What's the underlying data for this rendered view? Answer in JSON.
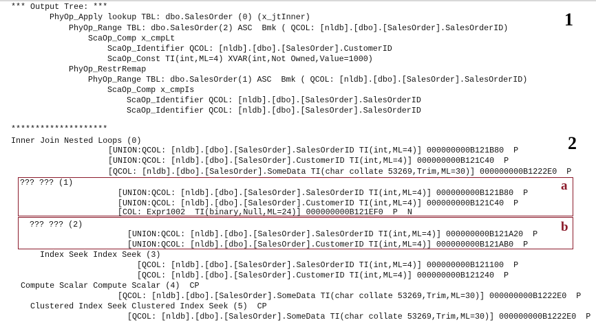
{
  "tree": {
    "lines": [
      "*** Output Tree: ***",
      "PhyOp_Apply lookup TBL: dbo.SalesOrder (0) (x_jtInner)",
      "PhyOp_Range TBL: dbo.SalesOrder(2) ASC  Bmk ( QCOL: [nldb].[dbo].[SalesOrder].SalesOrderID)",
      "ScaOp_Comp x_cmpLt",
      "ScaOp_Identifier QCOL: [nldb].[dbo].[SalesOrder].CustomerID",
      "ScaOp_Const TI(int,ML=4) XVAR(int,Not Owned,Value=1000)",
      "PhyOp_RestrRemap",
      "PhyOp_Range TBL: dbo.SalesOrder(1) ASC  Bmk ( QCOL: [nldb].[dbo].[SalesOrder].SalesOrderID)",
      "ScaOp_Comp x_cmpIs",
      "ScaOp_Identifier QCOL: [nldb].[dbo].[SalesOrder].SalesOrderID",
      "ScaOp_Identifier QCOL: [nldb].[dbo].[SalesOrder].SalesOrderID"
    ]
  },
  "plan": {
    "lines": [
      "********************",
      "Inner Join Nested Loops (0)",
      "[UNION:QCOL: [nldb].[dbo].[SalesOrder].SalesOrderID TI(int,ML=4)] 000000000B121B80  P",
      "[UNION:QCOL: [nldb].[dbo].[SalesOrder].CustomerID TI(int,ML=4)] 000000000B121C40  P",
      "[QCOL: [nldb].[dbo].[SalesOrder].SomeData TI(char collate 53269,Trim,ML=30)] 000000000B1222E0  P",
      "??? ??? (1)",
      "[UNION:QCOL: [nldb].[dbo].[SalesOrder].SalesOrderID TI(int,ML=4)] 000000000B121B80  P",
      "[UNION:QCOL: [nldb].[dbo].[SalesOrder].CustomerID TI(int,ML=4)] 000000000B121C40  P",
      "[COL: Expr1002  TI(binary,Null,ML=24)] 000000000B121EF0  P  N",
      "??? ??? (2)",
      "[UNION:QCOL: [nldb].[dbo].[SalesOrder].SalesOrderID TI(int,ML=4)] 000000000B121A20  P",
      "[UNION:QCOL: [nldb].[dbo].[SalesOrder].CustomerID TI(int,ML=4)] 000000000B121AB0  P",
      "Index Seek Index Seek (3)",
      "[QCOL: [nldb].[dbo].[SalesOrder].SalesOrderID TI(int,ML=4)] 000000000B121100  P",
      "[QCOL: [nldb].[dbo].[SalesOrder].CustomerID TI(int,ML=4)] 000000000B121240  P",
      "Compute Scalar Compute Scalar (4)  CP",
      "[QCOL: [nldb].[dbo].[SalesOrder].SomeData TI(char collate 53269,Trim,ML=30)] 000000000B1222E0  P",
      "Clustered Index Seek Clustered Index Seek (5)  CP",
      "[QCOL: [nldb].[dbo].[SalesOrder].SomeData TI(char collate 53269,Trim,ML=30)] 000000000B1222E0  P"
    ]
  },
  "labels": {
    "one": "1",
    "two": "2",
    "a": "a",
    "b": "b"
  },
  "colors": {
    "highlight_box": "#8b1a2a"
  }
}
